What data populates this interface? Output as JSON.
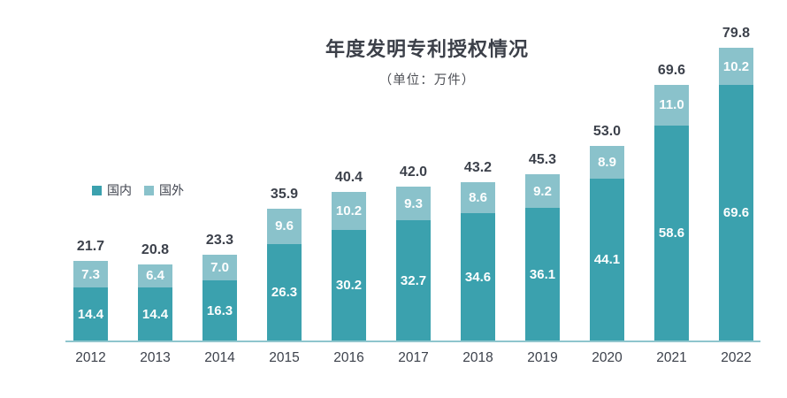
{
  "header": {
    "title": "年度发明专利授权情况",
    "subtitle": "（单位：万件）"
  },
  "chart_data": {
    "type": "bar",
    "stacked": true,
    "title": "年度发明专利授权情况",
    "subtitle": "（单位：万件）",
    "unit": "万件",
    "categories": [
      "2012",
      "2013",
      "2014",
      "2015",
      "2016",
      "2017",
      "2018",
      "2019",
      "2020",
      "2021",
      "2022"
    ],
    "series": [
      {
        "name": "国内",
        "color": "#3BA1AE",
        "values": [
          14.4,
          14.4,
          16.3,
          26.3,
          30.2,
          32.7,
          34.6,
          36.1,
          44.1,
          58.6,
          69.6
        ]
      },
      {
        "name": "国外",
        "color": "#8AC2CB",
        "values": [
          7.3,
          6.4,
          7.0,
          9.6,
          10.2,
          9.3,
          8.6,
          9.2,
          8.9,
          11.0,
          10.2
        ]
      }
    ],
    "totals": [
      21.7,
      20.8,
      23.3,
      35.9,
      40.4,
      42.0,
      43.2,
      45.3,
      53.0,
      69.6,
      79.8
    ],
    "legend_position": "left",
    "grid": false,
    "value_decimals": 1,
    "axis_line_color": "#8FC5CD",
    "total_label_color": "#3C414B",
    "value_label_color": "#FFFFFF"
  }
}
